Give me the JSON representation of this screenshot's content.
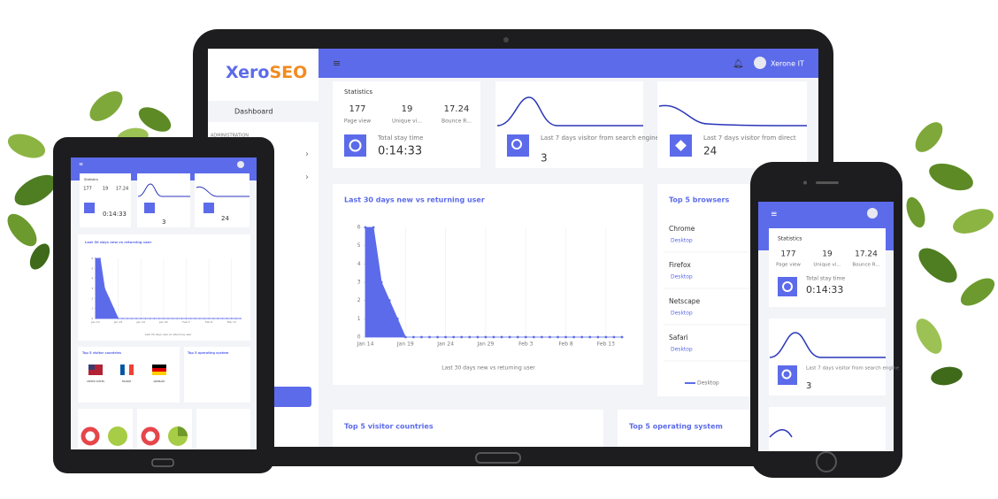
{
  "app": {
    "logo_prefix": "Xero",
    "logo_suffix": "SEO",
    "nav_dashboard": "Dashboard",
    "nav_section": "ADMINISTRATION",
    "user": "Xerone IT"
  },
  "stats": {
    "title": "Statistics",
    "page_view": 177,
    "page_view_label": "Page view",
    "unique": 19,
    "unique_label": "Unique vi...",
    "bounce": 17.24,
    "bounce_label": "Bounce R...",
    "stay_label": "Total stay time",
    "stay": "0:14:33"
  },
  "search_card": {
    "label": "Last 7 days visitor from search engine",
    "value": 3
  },
  "direct_card": {
    "label": "Last 7 days visitor from direct",
    "value": 24
  },
  "browsers": {
    "title": "Top 5 browsers",
    "items": [
      {
        "name": "Chrome",
        "type": "Desktop"
      },
      {
        "name": "Firefox",
        "type": "Desktop"
      },
      {
        "name": "Netscape",
        "type": "Desktop"
      },
      {
        "name": "Safari",
        "type": "Desktop"
      }
    ],
    "legend": "Desktop"
  },
  "countries": {
    "title": "Top 5 visitor countries",
    "items": [
      "UNITED STATES",
      "FRANCE",
      "GERMANY"
    ]
  },
  "os": {
    "title": "Top 5 operating system"
  },
  "chart_data": {
    "type": "area",
    "title": "Last 30 days new vs returning user",
    "categories": [
      "Jan 14",
      null,
      null,
      null,
      null,
      "Jan 19",
      null,
      null,
      null,
      null,
      "Jan 24",
      null,
      null,
      null,
      null,
      "Jan 29",
      null,
      null,
      null,
      null,
      "Feb 3",
      null,
      null,
      null,
      null,
      "Feb 8",
      null,
      null,
      null,
      null,
      "Feb 13",
      null,
      null
    ],
    "series": [
      {
        "name": "Last 30 days new vs returning user",
        "color": "#5c6bea",
        "values": [
          6,
          6,
          3,
          2,
          1,
          0,
          0,
          0,
          0,
          0,
          0,
          0,
          0,
          0,
          0,
          0,
          0,
          0,
          0,
          0,
          0,
          0,
          0,
          0,
          0,
          0,
          0,
          0,
          0,
          0,
          0,
          0,
          0
        ]
      }
    ],
    "ylim": [
      0,
      6
    ],
    "yticks": [
      0,
      1,
      2,
      3,
      4,
      5,
      6
    ],
    "grid": true
  }
}
